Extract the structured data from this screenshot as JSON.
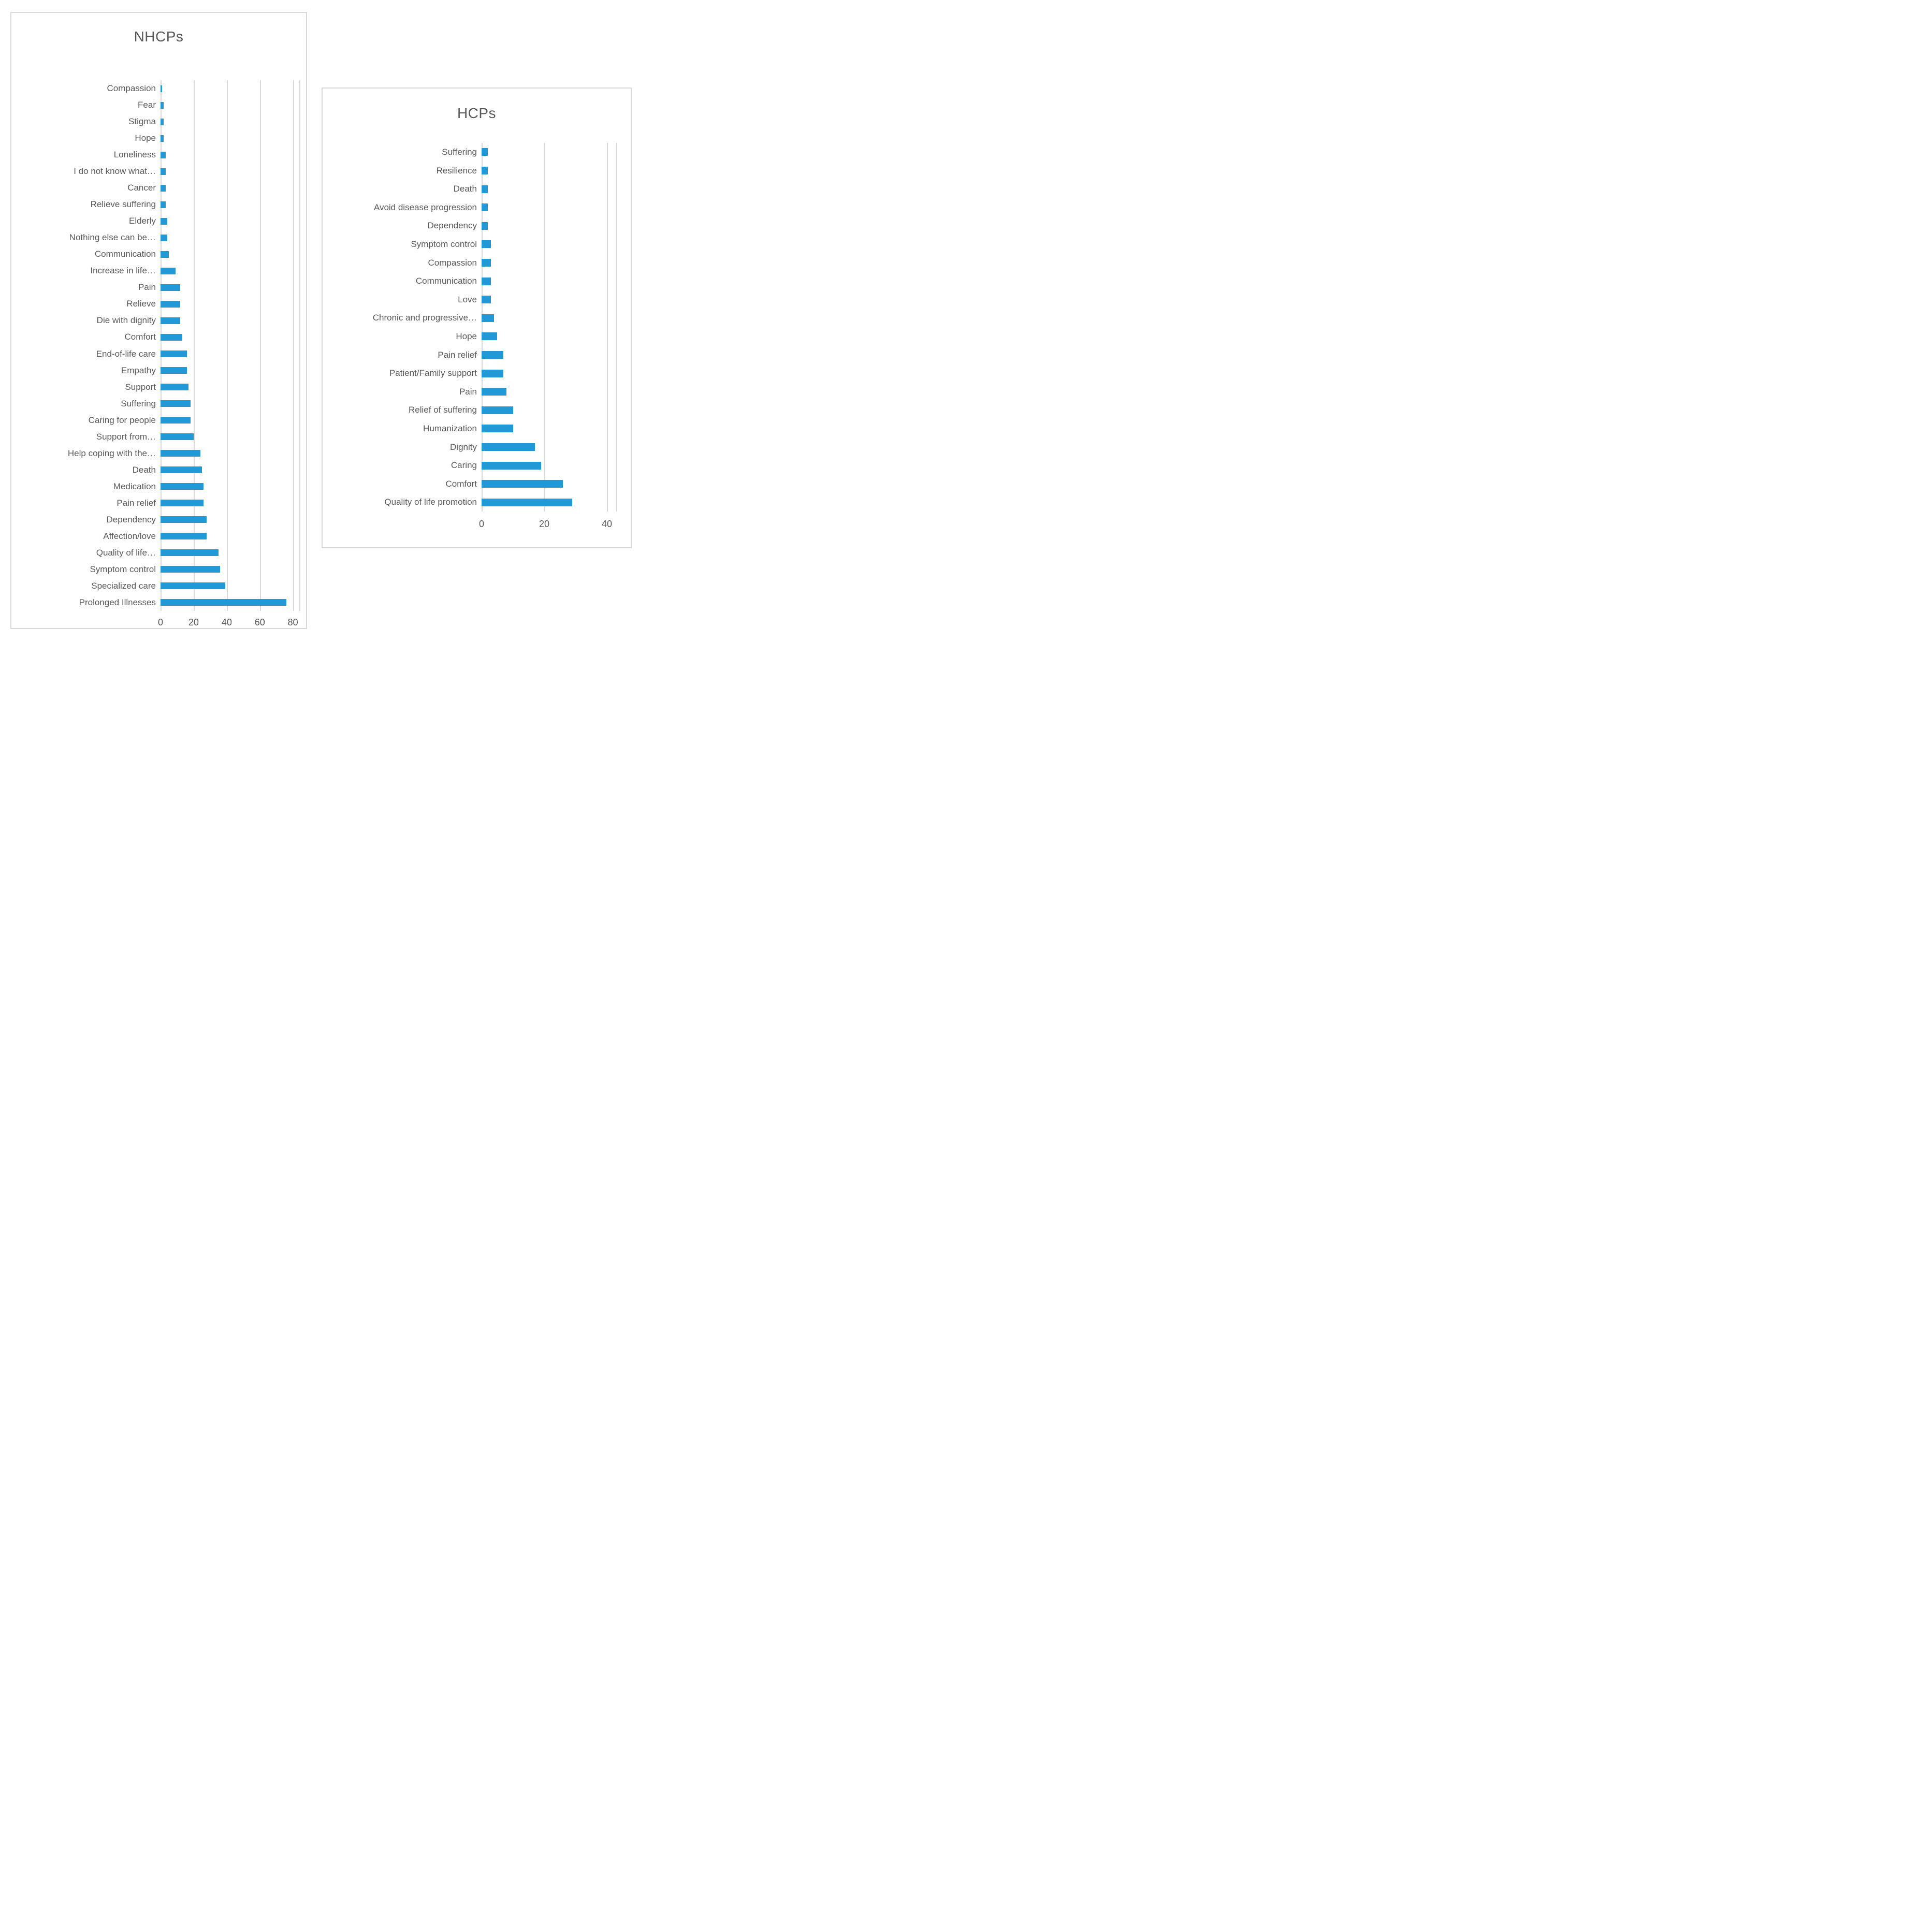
{
  "colors": {
    "bar": "#2099d6",
    "text": "#595959",
    "gridline": "#d9d9d9",
    "border": "#d9d9d9",
    "background": "#ffffff"
  },
  "chart_data": [
    {
      "type": "bar",
      "orientation": "horizontal",
      "title": "NHCPs",
      "categories": [
        "Compassion",
        "Fear",
        "Stigma",
        "Hope",
        "Loneliness",
        "I do not know what…",
        "Cancer",
        "Relieve suffering",
        "Elderly",
        "Nothing else can be…",
        "Communication",
        "Increase in life…",
        "Pain",
        "Relieve",
        "Die with dignity",
        "Comfort",
        "End-of-life care",
        "Empathy",
        "Support",
        "Suffering",
        "Caring for people",
        "Support from…",
        "Help coping with the…",
        "Death",
        "Medication",
        "Pain relief",
        "Dependency",
        "Affection/love",
        "Quality of life…",
        "Symptom control",
        "Specialized care",
        "Prolonged Illnesses"
      ],
      "values": [
        1,
        2,
        2,
        2,
        3,
        3,
        3,
        3,
        4,
        4,
        5,
        9,
        12,
        12,
        12,
        13,
        16,
        16,
        17,
        18,
        18,
        20,
        24,
        25,
        26,
        26,
        28,
        28,
        35,
        36,
        39,
        76
      ],
      "xticks": [
        0,
        20,
        40,
        60,
        80
      ],
      "xlim": [
        0,
        84
      ],
      "ylabel": "",
      "xlabel": "",
      "grid": true,
      "legend": false
    },
    {
      "type": "bar",
      "orientation": "horizontal",
      "title": "HCPs",
      "categories": [
        "Suffering",
        "Resilience",
        "Death",
        "Avoid disease progression",
        "Dependency",
        "Symptom control",
        "Compassion",
        "Communication",
        "Love",
        "Chronic and progressive…",
        "Hope",
        "Pain relief",
        "Patient/Family support",
        "Pain",
        "Relief of suffering",
        "Humanization",
        "Dignity",
        "Caring",
        "Comfort",
        "Quality of life promotion"
      ],
      "values": [
        2,
        2,
        2,
        2,
        2,
        3,
        3,
        3,
        3,
        4,
        5,
        7,
        7,
        8,
        10,
        10,
        17,
        19,
        26,
        29
      ],
      "xticks": [
        0,
        20,
        40
      ],
      "xlim": [
        0,
        43
      ],
      "ylabel": "",
      "xlabel": "",
      "grid": true,
      "legend": false
    }
  ]
}
